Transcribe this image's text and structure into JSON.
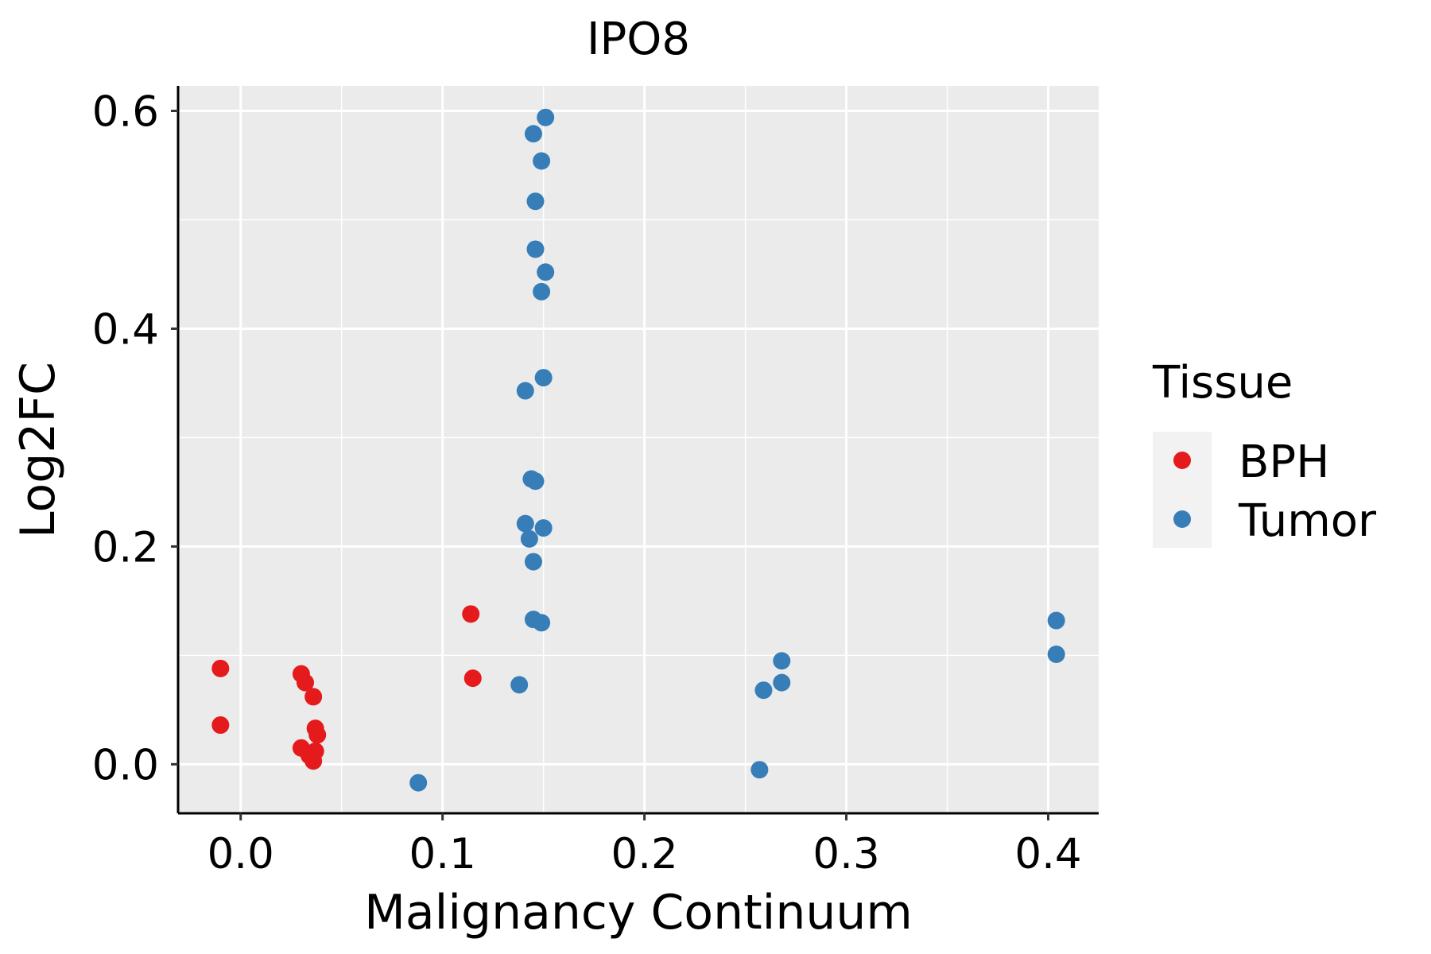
{
  "chart_data": {
    "type": "scatter",
    "title": "IPO8",
    "xlabel": "Malignancy Continuum",
    "ylabel": "Log2FC",
    "xlim": [
      -0.031,
      0.425
    ],
    "ylim": [
      -0.045,
      0.623
    ],
    "xticks": [
      0.0,
      0.1,
      0.2,
      0.3,
      0.4
    ],
    "xtick_labels": [
      "0.0",
      "0.1",
      "0.2",
      "0.3",
      "0.4"
    ],
    "yticks": [
      0.0,
      0.2,
      0.4,
      0.6
    ],
    "ytick_labels": [
      "0.0",
      "0.2",
      "0.4",
      "0.6"
    ],
    "grid": true,
    "legend": {
      "title": "Tissue",
      "placement": "right",
      "entries": [
        "BPH",
        "Tumor"
      ]
    },
    "colors": {
      "BPH": "#E41A1C",
      "Tumor": "#377EB8",
      "panel_background": "#EBEBEB",
      "grid": "#FFFFFF"
    },
    "series": [
      {
        "name": "BPH",
        "x": [
          -0.01,
          -0.01,
          0.03,
          0.032,
          0.036,
          0.03,
          0.034,
          0.037,
          0.038,
          0.036,
          0.037,
          0.114,
          0.115
        ],
        "y": [
          0.088,
          0.036,
          0.083,
          0.075,
          0.062,
          0.015,
          0.008,
          0.033,
          0.027,
          0.003,
          0.012,
          0.138,
          0.079
        ]
      },
      {
        "name": "Tumor",
        "x": [
          0.151,
          0.145,
          0.149,
          0.146,
          0.146,
          0.151,
          0.149,
          0.15,
          0.141,
          0.144,
          0.146,
          0.141,
          0.15,
          0.143,
          0.145,
          0.145,
          0.149,
          0.138,
          0.088,
          0.259,
          0.268,
          0.268,
          0.257,
          0.404,
          0.404
        ],
        "y": [
          0.594,
          0.579,
          0.554,
          0.517,
          0.473,
          0.452,
          0.434,
          0.355,
          0.343,
          0.262,
          0.26,
          0.221,
          0.217,
          0.207,
          0.186,
          0.133,
          0.13,
          0.073,
          -0.017,
          0.068,
          0.075,
          0.095,
          -0.005,
          0.132,
          0.101
        ]
      }
    ]
  }
}
